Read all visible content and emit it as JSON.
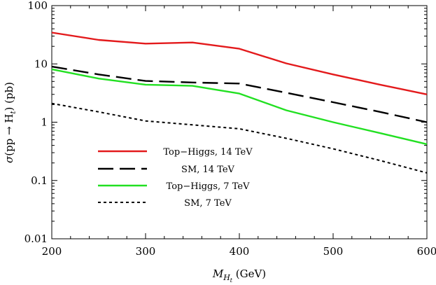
{
  "chart_data": {
    "type": "line",
    "title": "",
    "xlabel": {
      "main": "M",
      "sub": "H",
      "subsub": "t",
      "unit": " (GeV)"
    },
    "ylabel": {
      "prefix": "σ",
      "middle": "(pp → H",
      "sub": "t",
      "suffix": ") (pb)"
    },
    "x_ticks": [
      200,
      300,
      400,
      500,
      600
    ],
    "y_ticks": [
      0.01,
      0.1,
      1,
      10,
      100
    ],
    "y_tick_labels": [
      "0.01",
      "0.1",
      "1",
      "10",
      "100"
    ],
    "xlim": [
      200,
      600
    ],
    "ylim": [
      0.01,
      100
    ],
    "yscale": "log",
    "grid": false,
    "legend_position": "lower-left",
    "series": [
      {
        "name": "Top−Higgs, 14 TeV",
        "color": "#e31a1c",
        "dash": "solid",
        "x": [
          200,
          250,
          300,
          350,
          400,
          450,
          500,
          550,
          600
        ],
        "y": [
          34.5,
          25.8,
          22.3,
          23.3,
          18.2,
          10.2,
          6.6,
          4.4,
          3.0
        ]
      },
      {
        "name": "SM, 14 TeV",
        "color": "#000000",
        "dash": "long",
        "x": [
          200,
          250,
          300,
          350,
          400,
          450,
          500,
          550,
          600
        ],
        "y": [
          9.0,
          6.6,
          5.1,
          4.8,
          4.6,
          3.2,
          2.2,
          1.5,
          1.0
        ]
      },
      {
        "name": "Top−Higgs, 7 TeV",
        "color": "#22e022",
        "dash": "solid",
        "x": [
          200,
          250,
          300,
          350,
          400,
          450,
          500,
          550,
          600
        ],
        "y": [
          8.1,
          5.6,
          4.4,
          4.2,
          3.1,
          1.6,
          1.0,
          0.65,
          0.42
        ]
      },
      {
        "name": "SM, 7 TeV",
        "color": "#000000",
        "dash": "short",
        "x": [
          200,
          250,
          300,
          350,
          400,
          450,
          500,
          550,
          600
        ],
        "y": [
          2.1,
          1.5,
          1.05,
          0.9,
          0.77,
          0.53,
          0.35,
          0.22,
          0.135
        ]
      }
    ]
  }
}
